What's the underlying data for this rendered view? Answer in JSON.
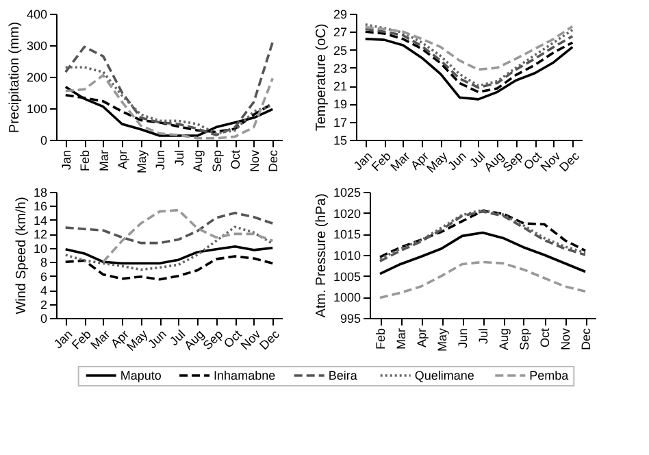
{
  "chart_data": [
    {
      "type": "line",
      "ylabel": "Precipitation (mm)",
      "categories": [
        "Jan",
        "Feb",
        "Mar",
        "Apr",
        "May",
        "Jun",
        "Jul",
        "Aug",
        "Sep",
        "Oct",
        "Nov",
        "Dec"
      ],
      "ylim": [
        0,
        400
      ],
      "yticks": [
        0,
        100,
        200,
        300,
        400
      ],
      "legend": "bottom",
      "series": [
        {
          "name": "Maputo",
          "color": "#000000",
          "line_style": "solid",
          "values": [
            168,
            130,
            105,
            50,
            33,
            13,
            13,
            13,
            40,
            55,
            70,
            97
          ]
        },
        {
          "name": "Inhamabne",
          "color": "#000000",
          "line_style": "dashed",
          "values": [
            142,
            133,
            122,
            90,
            62,
            55,
            42,
            30,
            25,
            35,
            80,
            115
          ]
        },
        {
          "name": "Beira",
          "color": "#555555",
          "line_style": "dashed",
          "values": [
            215,
            295,
            265,
            150,
            70,
            55,
            50,
            35,
            15,
            40,
            120,
            310
          ]
        },
        {
          "name": "Quelimane",
          "color": "#666666",
          "line_style": "dotted",
          "values": [
            230,
            230,
            215,
            140,
            80,
            60,
            60,
            50,
            20,
            30,
            90,
            110
          ]
        },
        {
          "name": "Pemba",
          "color": "#999999",
          "line_style": "dashed",
          "values": [
            155,
            160,
            205,
            120,
            45,
            20,
            15,
            5,
            5,
            10,
            40,
            195
          ]
        }
      ]
    },
    {
      "type": "line",
      "ylabel": "Temperature (oC)",
      "categories": [
        "Jan",
        "Feb",
        "Mar",
        "Apr",
        "May",
        "Jun",
        "Jul",
        "Aug",
        "Sep",
        "Oct",
        "Nov",
        "Dec"
      ],
      "ylim": [
        15,
        29
      ],
      "yticks": [
        15,
        17,
        19,
        21,
        23,
        25,
        27,
        29
      ],
      "legend": "bottom",
      "series": [
        {
          "name": "Maputo",
          "color": "#000000",
          "line_style": "solid",
          "values": [
            26.2,
            26.1,
            25.5,
            24.1,
            22.3,
            19.7,
            19.5,
            20.3,
            21.6,
            22.4,
            23.6,
            25.3
          ]
        },
        {
          "name": "Inhamabne",
          "color": "#000000",
          "line_style": "dashed",
          "values": [
            27.0,
            26.8,
            26.2,
            25.1,
            23.5,
            21.3,
            20.3,
            20.7,
            22.2,
            23.3,
            24.7,
            25.8
          ]
        },
        {
          "name": "Beira",
          "color": "#555555",
          "line_style": "dashed",
          "values": [
            27.3,
            27.0,
            26.6,
            25.4,
            23.8,
            21.8,
            20.8,
            21.3,
            22.8,
            24.0,
            25.3,
            26.5
          ]
        },
        {
          "name": "Quelimane",
          "color": "#666666",
          "line_style": "dotted",
          "values": [
            27.8,
            27.4,
            26.9,
            25.8,
            24.3,
            22.3,
            21.0,
            21.5,
            23.0,
            24.4,
            25.8,
            27.2
          ]
        },
        {
          "name": "Pemba",
          "color": "#999999",
          "line_style": "dashed",
          "values": [
            27.5,
            27.3,
            27.0,
            26.2,
            25.3,
            23.8,
            22.8,
            23.0,
            24.0,
            25.1,
            26.2,
            27.6
          ]
        }
      ]
    },
    {
      "type": "line",
      "ylabel": "Wind Speed (km/h)",
      "categories": [
        "Jan",
        "Feb",
        "Mar",
        "Apr",
        "May",
        "Jun",
        "Jul",
        "Aug",
        "Sep",
        "Oct",
        "Nov",
        "Dec"
      ],
      "ylim": [
        0,
        18
      ],
      "yticks": [
        0,
        2,
        4,
        6,
        8,
        10,
        12,
        14,
        16,
        18
      ],
      "legend": "bottom",
      "series": [
        {
          "name": "Maputo",
          "color": "#000000",
          "line_style": "solid",
          "values": [
            9.8,
            9.2,
            8.0,
            7.8,
            7.8,
            7.8,
            8.3,
            9.4,
            9.8,
            10.2,
            9.7,
            10.0
          ]
        },
        {
          "name": "Inhamabne",
          "color": "#000000",
          "line_style": "dashed",
          "values": [
            8.0,
            8.2,
            6.2,
            5.6,
            5.9,
            5.5,
            6.0,
            6.8,
            8.4,
            8.8,
            8.5,
            7.8
          ]
        },
        {
          "name": "Beira",
          "color": "#555555",
          "line_style": "dashed",
          "values": [
            12.9,
            12.7,
            12.5,
            11.5,
            10.7,
            10.7,
            11.2,
            12.4,
            14.3,
            15.0,
            14.4,
            13.5
          ]
        },
        {
          "name": "Quelimane",
          "color": "#666666",
          "line_style": "dotted",
          "values": [
            9.0,
            8.2,
            7.8,
            7.4,
            6.9,
            7.2,
            7.6,
            9.0,
            11.0,
            13.0,
            12.2,
            10.6
          ]
        },
        {
          "name": "Pemba",
          "color": "#999999",
          "line_style": "dashed",
          "values": [
            null,
            null,
            8.0,
            11.0,
            13.5,
            15.2,
            15.4,
            12.8,
            11.5,
            12.0,
            12.0,
            11.0
          ]
        }
      ]
    },
    {
      "type": "line",
      "ylabel": "Atm. Pressure (hPa)",
      "categories": [
        "Feb",
        "Mar",
        "Apr",
        "May",
        "Jun",
        "Jul",
        "Aug",
        "Sep",
        "Oct",
        "Nov",
        "Dec"
      ],
      "ylim": [
        995,
        1025
      ],
      "yticks": [
        995,
        1000,
        1005,
        1010,
        1015,
        1020,
        1025
      ],
      "legend": "bottom",
      "series": [
        {
          "name": "Maputo",
          "color": "#000000",
          "line_style": "solid",
          "values": [
            1005.5,
            1007.8,
            1009.6,
            1011.5,
            1014.5,
            1015.3,
            1014.0,
            1011.8,
            1010.0,
            1008.0,
            1006.0
          ]
        },
        {
          "name": "Inhamabne",
          "color": "#000000",
          "line_style": "dashed",
          "values": [
            1009.5,
            1011.8,
            1013.6,
            1015.5,
            1018.0,
            1020.5,
            1019.8,
            1017.5,
            1017.3,
            1013.5,
            1011.0
          ]
        },
        {
          "name": "Beira",
          "color": "#555555",
          "line_style": "dashed",
          "values": [
            1008.5,
            1011.0,
            1013.2,
            1016.0,
            1019.3,
            1020.3,
            1019.3,
            1016.5,
            1013.5,
            1011.5,
            1010.0
          ]
        },
        {
          "name": "Quelimane",
          "color": "#666666",
          "line_style": "dotted",
          "values": [
            1009.0,
            1011.5,
            1013.5,
            1016.5,
            1019.5,
            1020.7,
            1019.6,
            1017.0,
            1014.0,
            1012.0,
            1010.5
          ]
        },
        {
          "name": "Pemba",
          "color": "#999999",
          "line_style": "dashed",
          "values": [
            999.8,
            1001.0,
            1002.5,
            1005.0,
            1007.8,
            1008.3,
            1008.0,
            1006.5,
            1004.5,
            1002.5,
            1001.3
          ]
        }
      ]
    }
  ]
}
